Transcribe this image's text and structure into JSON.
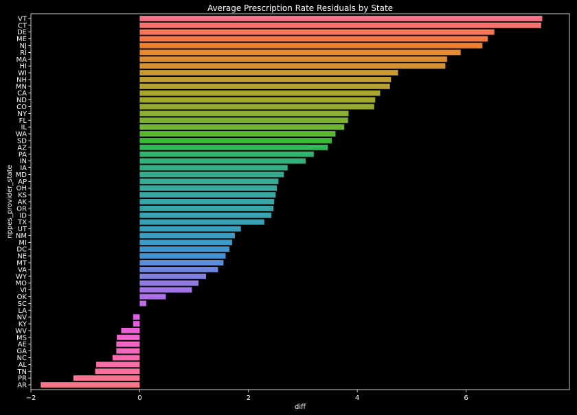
{
  "chart_data": {
    "type": "bar",
    "orientation": "horizontal",
    "title": "Average Prescription Rate Residuals by State",
    "xlabel": "diff",
    "ylabel": "nppes_provider_state",
    "xlim": [
      -2.0,
      7.9
    ],
    "xticks": [
      -2,
      0,
      2,
      4,
      6
    ],
    "xtick_labels": [
      "−2",
      "0",
      "2",
      "4",
      "6"
    ],
    "grid": false,
    "background": "#000000",
    "categories": [
      "VT",
      "CT",
      "DE",
      "ME",
      "NJ",
      "RI",
      "MA",
      "HI",
      "WI",
      "NH",
      "MN",
      "CA",
      "ND",
      "CO",
      "NY",
      "FL",
      "IL",
      "WA",
      "SD",
      "AZ",
      "PA",
      "IN",
      "IA",
      "MD",
      "AP",
      "OH",
      "KS",
      "AK",
      "OR",
      "ID",
      "TX",
      "UT",
      "NM",
      "MI",
      "DC",
      "NE",
      "MT",
      "VA",
      "WY",
      "MO",
      "VI",
      "OK",
      "SC",
      "LA",
      "NV",
      "KY",
      "WV",
      "MS",
      "AE",
      "GA",
      "NC",
      "AL",
      "TN",
      "PR",
      "AR"
    ],
    "values": [
      7.4,
      7.38,
      6.52,
      6.4,
      6.3,
      5.9,
      5.65,
      5.62,
      4.75,
      4.62,
      4.6,
      4.42,
      4.33,
      4.31,
      3.84,
      3.83,
      3.76,
      3.6,
      3.53,
      3.46,
      3.2,
      3.05,
      2.72,
      2.65,
      2.55,
      2.52,
      2.5,
      2.47,
      2.46,
      2.42,
      2.29,
      1.86,
      1.75,
      1.7,
      1.65,
      1.58,
      1.54,
      1.44,
      1.22,
      1.08,
      0.96,
      0.48,
      0.12,
      0.0,
      -0.12,
      -0.12,
      -0.34,
      -0.42,
      -0.43,
      -0.43,
      -0.5,
      -0.8,
      -0.82,
      -1.22,
      -1.82
    ],
    "colors": [
      "#f77189",
      "#f7736c",
      "#f7765a",
      "#f77a46",
      "#f17f30",
      "#e7882f",
      "#dd8d31",
      "#d49231",
      "#c99a32",
      "#bf9f32",
      "#b5a232",
      "#aba532",
      "#a1a832",
      "#97ab32",
      "#8cae32",
      "#7fb132",
      "#6fb432",
      "#59b732",
      "#3ab932",
      "#31b65a",
      "#32b370",
      "#33b07d",
      "#34ae87",
      "#35ac8f",
      "#36aa96",
      "#36a99c",
      "#37a7a1",
      "#38a6a6",
      "#38a5ab",
      "#39a3b0",
      "#3aa1b5",
      "#3b9fbb",
      "#3c9dc1",
      "#3d9ac7",
      "#3f97cd",
      "#4693d4",
      "#5b8dd9",
      "#6e87de",
      "#8181e2",
      "#917be6",
      "#a175e9",
      "#b06eeb",
      "#c06be9",
      "#ce66e6",
      "#db60e1",
      "#e45ddd",
      "#ea5fd5",
      "#ee63cc",
      "#f066c3",
      "#f26ab9",
      "#f46daf",
      "#f56fa5",
      "#f6719b",
      "#f77291",
      "#f77489"
    ]
  }
}
